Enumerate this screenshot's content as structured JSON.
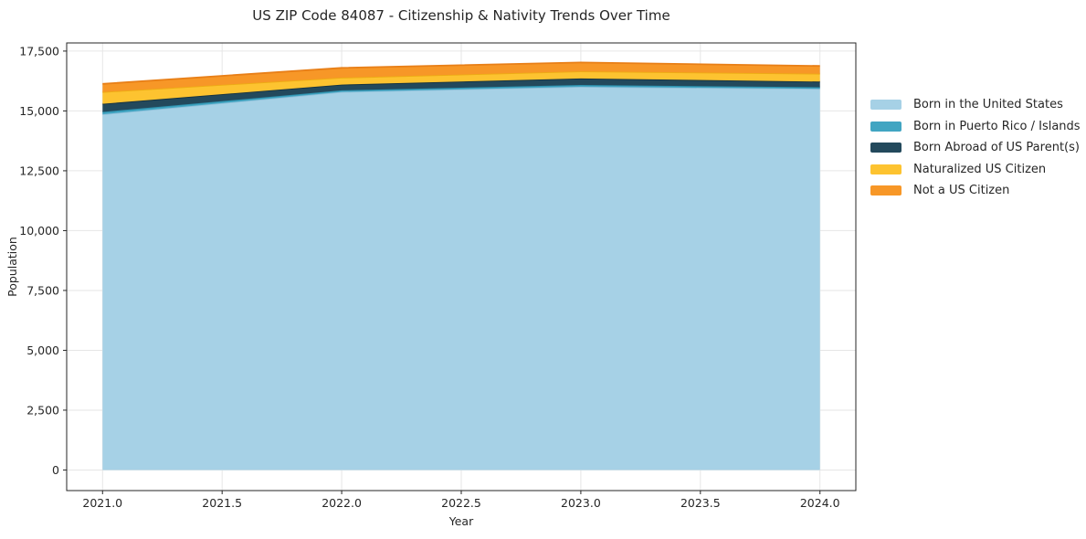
{
  "title": "US ZIP Code 84087 - Citizenship & Nativity Trends Over Time",
  "chart_data": {
    "type": "area",
    "stacked": true,
    "title": "US ZIP Code 84087 - Citizenship & Nativity Trends Over Time",
    "xlabel": "Year",
    "ylabel": "Population",
    "x": [
      2021,
      2022,
      2023,
      2024
    ],
    "series": [
      {
        "name": "Born in the United States",
        "values": [
          14860,
          15795,
          16010,
          15925
        ],
        "color": "#a6d1e6",
        "edge": "#8fc0da"
      },
      {
        "name": "Born in Puerto Rico / Islands",
        "values": [
          100,
          65,
          75,
          65
        ],
        "color": "#41a5c2",
        "edge": "#2d90ad"
      },
      {
        "name": "Born Abroad of US Parent(s)",
        "values": [
          340,
          240,
          270,
          235
        ],
        "color": "#23495c",
        "edge": "#16323f"
      },
      {
        "name": "Naturalized US Citizen",
        "values": [
          490,
          290,
          300,
          330
        ],
        "color": "#fdc330",
        "edge": "#edac14"
      },
      {
        "name": "Not a US Citizen",
        "values": [
          340,
          410,
          370,
          325
        ],
        "color": "#f79727",
        "edge": "#e87f17"
      }
    ],
    "totals": [
      16130,
      16800,
      17025,
      16880
    ],
    "xlim": [
      2020.85,
      2024.15
    ],
    "ylim": [
      -860,
      17840
    ],
    "x_ticks": [
      2021.0,
      2021.5,
      2022.0,
      2022.5,
      2023.0,
      2023.5,
      2024.0
    ],
    "x_tick_labels": [
      "2021.0",
      "2021.5",
      "2022.0",
      "2022.5",
      "2023.0",
      "2023.5",
      "2024.0"
    ],
    "y_ticks": [
      0,
      2500,
      5000,
      7500,
      10000,
      12500,
      15000,
      17500
    ],
    "y_tick_labels": [
      "0",
      "2,500",
      "5,000",
      "7,500",
      "10,000",
      "12,500",
      "15,000",
      "17,500"
    ],
    "grid": true,
    "legend_position": "right-outside",
    "colors": {
      "grid": "#e6e6e6",
      "spine": "#262626",
      "text": "#262626",
      "background": "#ffffff"
    }
  }
}
